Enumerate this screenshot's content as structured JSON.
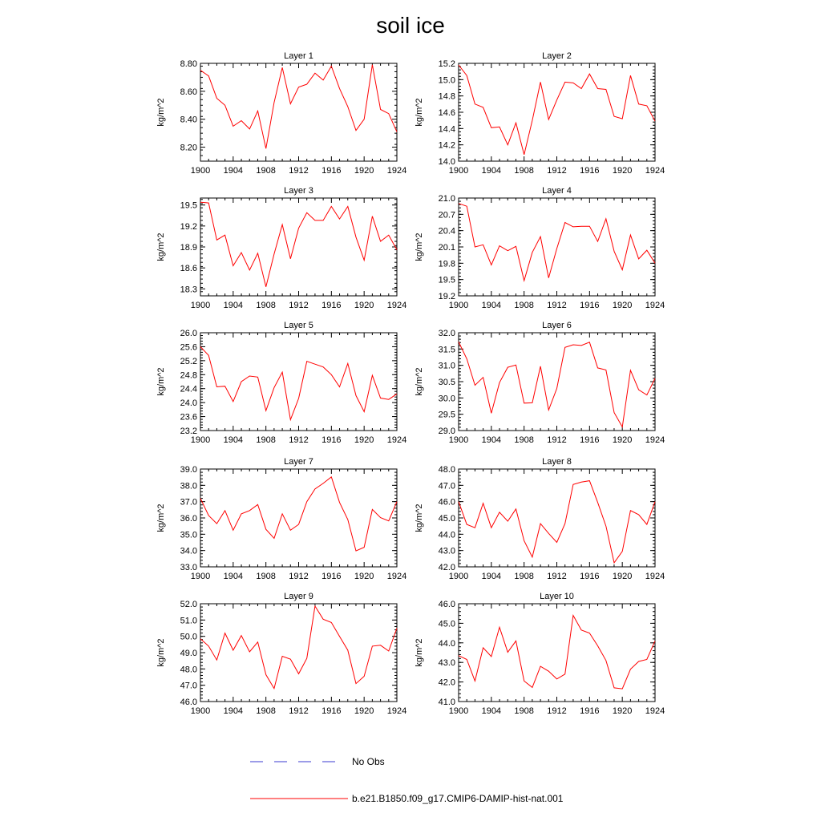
{
  "title": "soil ice",
  "legend": {
    "items": [
      {
        "label": "No Obs",
        "color": "#3a3ad0",
        "dash": "dashed"
      },
      {
        "label": "b.e21.B1850.f09_g17.CMIP6-DAMIP-hist-nat.001",
        "color": "#ff0000",
        "dash": "solid"
      }
    ]
  },
  "chart_data": [
    {
      "type": "line",
      "title": "Layer 1",
      "ylabel": "kg/m^2",
      "xlim": [
        1900,
        1924
      ],
      "ylim": [
        8.1,
        8.8
      ],
      "xticks": [
        "1900",
        "1904",
        "1908",
        "1912",
        "1916",
        "1920",
        "1924"
      ],
      "yticks": [
        "8.20",
        "8.40",
        "8.60",
        "8.80"
      ],
      "x": [
        1900,
        1901,
        1902,
        1903,
        1904,
        1905,
        1906,
        1907,
        1908,
        1909,
        1910,
        1911,
        1912,
        1913,
        1914,
        1915,
        1916,
        1917,
        1918,
        1919,
        1920,
        1921,
        1922,
        1923,
        1924
      ],
      "series": [
        {
          "values": [
            8.75,
            8.71,
            8.55,
            8.5,
            8.35,
            8.39,
            8.33,
            8.46,
            8.19,
            8.52,
            8.77,
            8.51,
            8.63,
            8.65,
            8.73,
            8.68,
            8.78,
            8.62,
            8.49,
            8.32,
            8.4,
            8.79,
            8.47,
            8.44,
            8.31
          ]
        }
      ]
    },
    {
      "type": "line",
      "title": "Layer 2",
      "ylabel": "kg/m^2",
      "xlim": [
        1900,
        1924
      ],
      "ylim": [
        14.0,
        15.2
      ],
      "xticks": [
        "1900",
        "1904",
        "1908",
        "1912",
        "1916",
        "1920",
        "1924"
      ],
      "yticks": [
        "14.0",
        "14.2",
        "14.4",
        "14.6",
        "14.8",
        "15.0",
        "15.2"
      ],
      "x": [
        1900,
        1901,
        1902,
        1903,
        1904,
        1905,
        1906,
        1907,
        1908,
        1909,
        1910,
        1911,
        1912,
        1913,
        1914,
        1915,
        1916,
        1917,
        1918,
        1919,
        1920,
        1921,
        1922,
        1923,
        1924
      ],
      "series": [
        {
          "values": [
            15.18,
            15.05,
            14.7,
            14.66,
            14.41,
            14.42,
            14.2,
            14.47,
            14.08,
            14.5,
            14.97,
            14.51,
            14.75,
            14.97,
            14.96,
            14.89,
            15.07,
            14.89,
            14.88,
            14.55,
            14.52,
            15.05,
            14.7,
            14.68,
            14.49
          ]
        }
      ]
    },
    {
      "type": "line",
      "title": "Layer 3",
      "ylabel": "kg/m^2",
      "xlim": [
        1900,
        1924
      ],
      "ylim": [
        18.2,
        19.6
      ],
      "xticks": [
        "1900",
        "1904",
        "1908",
        "1912",
        "1916",
        "1920",
        "1924"
      ],
      "yticks": [
        "18.3",
        "18.6",
        "18.9",
        "19.2",
        "19.5"
      ],
      "x": [
        1900,
        1901,
        1902,
        1903,
        1904,
        1905,
        1906,
        1907,
        1908,
        1909,
        1910,
        1911,
        1912,
        1913,
        1914,
        1915,
        1916,
        1917,
        1918,
        1919,
        1920,
        1921,
        1922,
        1923,
        1924
      ],
      "series": [
        {
          "values": [
            19.54,
            19.53,
            19.0,
            19.07,
            18.63,
            18.82,
            18.57,
            18.81,
            18.33,
            18.8,
            19.22,
            18.73,
            19.17,
            19.39,
            19.28,
            19.28,
            19.48,
            19.3,
            19.48,
            19.04,
            18.71,
            19.34,
            18.98,
            19.07,
            18.86
          ]
        }
      ]
    },
    {
      "type": "line",
      "title": "Layer 4",
      "ylabel": "kg/m^2",
      "xlim": [
        1900,
        1924
      ],
      "ylim": [
        19.2,
        21.0
      ],
      "xticks": [
        "1900",
        "1904",
        "1908",
        "1912",
        "1916",
        "1920",
        "1924"
      ],
      "yticks": [
        "19.2",
        "19.5",
        "19.8",
        "20.1",
        "20.4",
        "20.7",
        "21.0"
      ],
      "x": [
        1900,
        1901,
        1902,
        1903,
        1904,
        1905,
        1906,
        1907,
        1908,
        1909,
        1910,
        1911,
        1912,
        1913,
        1914,
        1915,
        1916,
        1917,
        1918,
        1919,
        1920,
        1921,
        1922,
        1923,
        1924
      ],
      "series": [
        {
          "values": [
            20.9,
            20.85,
            20.1,
            20.14,
            19.77,
            20.12,
            20.03,
            20.11,
            19.48,
            20.0,
            20.29,
            19.53,
            20.07,
            20.55,
            20.47,
            20.48,
            20.48,
            20.2,
            20.62,
            20.02,
            19.68,
            20.32,
            19.88,
            20.04,
            19.8
          ]
        }
      ]
    },
    {
      "type": "line",
      "title": "Layer 5",
      "ylabel": "kg/m^2",
      "xlim": [
        1900,
        1924
      ],
      "ylim": [
        23.2,
        26.0
      ],
      "xticks": [
        "1900",
        "1904",
        "1908",
        "1912",
        "1916",
        "1920",
        "1924"
      ],
      "yticks": [
        "23.2",
        "23.6",
        "24.0",
        "24.4",
        "24.8",
        "25.2",
        "25.6",
        "26.0"
      ],
      "x": [
        1900,
        1901,
        1902,
        1903,
        1904,
        1905,
        1906,
        1907,
        1908,
        1909,
        1910,
        1911,
        1912,
        1913,
        1914,
        1915,
        1916,
        1917,
        1918,
        1919,
        1920,
        1921,
        1922,
        1923,
        1924
      ],
      "series": [
        {
          "values": [
            25.6,
            25.35,
            24.45,
            24.47,
            24.03,
            24.6,
            24.76,
            24.73,
            23.77,
            24.43,
            24.87,
            23.51,
            24.12,
            25.18,
            25.1,
            25.02,
            24.8,
            24.45,
            25.12,
            24.2,
            23.74,
            24.78,
            24.13,
            24.09,
            24.25
          ]
        }
      ]
    },
    {
      "type": "line",
      "title": "Layer 6",
      "ylabel": "kg/m^2",
      "xlim": [
        1900,
        1924
      ],
      "ylim": [
        29.0,
        32.0
      ],
      "xticks": [
        "1900",
        "1904",
        "1908",
        "1912",
        "1916",
        "1920",
        "1924"
      ],
      "yticks": [
        "29.0",
        "29.5",
        "30.0",
        "30.5",
        "31.0",
        "31.5",
        "32.0"
      ],
      "x": [
        1900,
        1901,
        1902,
        1903,
        1904,
        1905,
        1906,
        1907,
        1908,
        1909,
        1910,
        1911,
        1912,
        1913,
        1914,
        1915,
        1916,
        1917,
        1918,
        1919,
        1920,
        1921,
        1922,
        1923,
        1924
      ],
      "series": [
        {
          "values": [
            31.72,
            31.2,
            30.39,
            30.63,
            29.53,
            30.47,
            30.94,
            31.01,
            29.84,
            29.85,
            30.97,
            29.63,
            30.29,
            31.55,
            31.63,
            31.61,
            31.71,
            30.92,
            30.86,
            29.55,
            29.11,
            30.85,
            30.25,
            30.09,
            30.6
          ]
        }
      ]
    },
    {
      "type": "line",
      "title": "Layer 7",
      "ylabel": "kg/m^2",
      "xlim": [
        1900,
        1924
      ],
      "ylim": [
        33.0,
        39.0
      ],
      "xticks": [
        "1900",
        "1904",
        "1908",
        "1912",
        "1916",
        "1920",
        "1924"
      ],
      "yticks": [
        "33.0",
        "34.0",
        "35.0",
        "36.0",
        "37.0",
        "38.0",
        "39.0"
      ],
      "x": [
        1900,
        1901,
        1902,
        1903,
        1904,
        1905,
        1906,
        1907,
        1908,
        1909,
        1910,
        1911,
        1912,
        1913,
        1914,
        1915,
        1916,
        1917,
        1918,
        1919,
        1920,
        1921,
        1922,
        1923,
        1924
      ],
      "series": [
        {
          "values": [
            37.2,
            36.15,
            35.65,
            36.45,
            35.25,
            36.25,
            36.45,
            36.82,
            35.3,
            34.75,
            36.25,
            35.25,
            35.6,
            37.0,
            37.78,
            38.12,
            38.52,
            36.95,
            35.9,
            33.98,
            34.2,
            36.52,
            36.02,
            35.82,
            37.0
          ]
        }
      ]
    },
    {
      "type": "line",
      "title": "Layer 8",
      "ylabel": "kg/m^2",
      "xlim": [
        1900,
        1924
      ],
      "ylim": [
        42.0,
        48.0
      ],
      "xticks": [
        "1900",
        "1904",
        "1908",
        "1912",
        "1916",
        "1920",
        "1924"
      ],
      "yticks": [
        "42.0",
        "43.0",
        "44.0",
        "45.0",
        "46.0",
        "47.0",
        "48.0"
      ],
      "x": [
        1900,
        1901,
        1902,
        1903,
        1904,
        1905,
        1906,
        1907,
        1908,
        1909,
        1910,
        1911,
        1912,
        1913,
        1914,
        1915,
        1916,
        1917,
        1918,
        1919,
        1920,
        1921,
        1922,
        1923,
        1924
      ],
      "series": [
        {
          "values": [
            46.0,
            44.6,
            44.4,
            45.9,
            44.4,
            45.35,
            44.8,
            45.55,
            43.6,
            42.6,
            44.65,
            44.05,
            43.5,
            44.65,
            47.05,
            47.2,
            47.28,
            45.95,
            44.5,
            42.25,
            42.95,
            45.45,
            45.2,
            44.6,
            46.0
          ]
        }
      ]
    },
    {
      "type": "line",
      "title": "Layer 9",
      "ylabel": "kg/m^2",
      "xlim": [
        1900,
        1924
      ],
      "ylim": [
        46.0,
        52.0
      ],
      "xticks": [
        "1900",
        "1904",
        "1908",
        "1912",
        "1916",
        "1920",
        "1924"
      ],
      "yticks": [
        "46.0",
        "47.0",
        "48.0",
        "49.0",
        "50.0",
        "51.0",
        "52.0"
      ],
      "x": [
        1900,
        1901,
        1902,
        1903,
        1904,
        1905,
        1906,
        1907,
        1908,
        1909,
        1910,
        1911,
        1912,
        1913,
        1914,
        1915,
        1916,
        1917,
        1918,
        1919,
        1920,
        1921,
        1922,
        1923,
        1924
      ],
      "series": [
        {
          "values": [
            49.85,
            49.4,
            48.55,
            50.2,
            49.15,
            50.05,
            49.05,
            49.65,
            47.65,
            46.8,
            48.78,
            48.6,
            47.7,
            48.65,
            51.85,
            51.05,
            50.85,
            50.0,
            49.15,
            47.1,
            47.55,
            49.4,
            49.45,
            49.1,
            50.5
          ]
        }
      ]
    },
    {
      "type": "line",
      "title": "Layer 10",
      "ylabel": "kg/m^2",
      "xlim": [
        1900,
        1924
      ],
      "ylim": [
        41.0,
        46.0
      ],
      "xticks": [
        "1900",
        "1904",
        "1908",
        "1912",
        "1916",
        "1920",
        "1924"
      ],
      "yticks": [
        "41.0",
        "42.0",
        "43.0",
        "44.0",
        "45.0",
        "46.0"
      ],
      "x": [
        1900,
        1901,
        1902,
        1903,
        1904,
        1905,
        1906,
        1907,
        1908,
        1909,
        1910,
        1911,
        1912,
        1913,
        1914,
        1915,
        1916,
        1917,
        1918,
        1919,
        1920,
        1921,
        1922,
        1923,
        1924
      ],
      "series": [
        {
          "values": [
            43.35,
            43.15,
            42.05,
            43.75,
            43.3,
            44.8,
            43.52,
            44.1,
            42.05,
            41.72,
            42.8,
            42.55,
            42.15,
            42.4,
            45.4,
            44.65,
            44.5,
            43.85,
            43.1,
            41.7,
            41.65,
            42.65,
            43.05,
            43.15,
            44.1
          ]
        }
      ]
    }
  ]
}
